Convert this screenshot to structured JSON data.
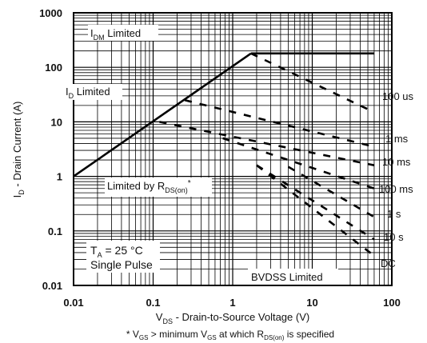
{
  "chart_data": {
    "type": "line",
    "x_scale": "log",
    "y_scale": "log",
    "xlim": [
      0.01,
      100
    ],
    "ylim": [
      0.01,
      1000
    ],
    "xticks": [
      "0.01",
      "0.1",
      "1",
      "10",
      "100"
    ],
    "yticks": [
      "1000",
      "100",
      "10",
      "1",
      "0.1",
      "0.01"
    ],
    "xlabel": {
      "main": "V",
      "sub": "DS",
      "rest": " - Drain-to-Source Voltage (V)"
    },
    "ylabel": {
      "main": "I",
      "sub": "D",
      "rest": " - Drain Current (A)"
    },
    "footnote": {
      "p1": "* V",
      "s1": "GS",
      "p2": " > minimum V",
      "s2": "GS",
      "p3": " at which R",
      "s3": "DS(on)",
      "p4": " is specified"
    },
    "grid": true,
    "series": [
      {
        "name": "R_DS(on) limit",
        "style": "solid",
        "x": [
          0.01,
          1.7
        ],
        "y": [
          1.0,
          180
        ]
      },
      {
        "name": "I_DM limit",
        "style": "solid",
        "x": [
          1.7,
          60
        ],
        "y": [
          180,
          180
        ]
      },
      {
        "name": "100 us",
        "style": "dashed",
        "x": [
          1.7,
          60
        ],
        "y": [
          180,
          15
        ]
      },
      {
        "name": "1 ms",
        "style": "dashed",
        "x": [
          0.25,
          60
        ],
        "y": [
          25,
          3.5
        ]
      },
      {
        "name": "10 ms",
        "style": "dashed",
        "x": [
          0.12,
          60
        ],
        "y": [
          10,
          1.6
        ]
      },
      {
        "name": "100 ms",
        "style": "dashed",
        "x": [
          0.75,
          60
        ],
        "y": [
          5,
          0.6
        ]
      },
      {
        "name": "1 s",
        "style": "dashed",
        "x": [
          5,
          60
        ],
        "y": [
          1.5,
          0.18
        ]
      },
      {
        "name": "10 s",
        "style": "dashed",
        "x": [
          2,
          60
        ],
        "y": [
          1.6,
          0.07
        ]
      },
      {
        "name": "DC",
        "style": "dashed",
        "x": [
          2,
          60
        ],
        "y": [
          1.6,
          0.035
        ]
      }
    ],
    "curve_labels": {
      "us100": "100 us",
      "ms1": "1 ms",
      "ms10": "10 ms",
      "ms100": "100 ms",
      "s1": "1 s",
      "s10": "10 s",
      "dc": "DC"
    },
    "annotations": {
      "idm": {
        "main": "I",
        "sub": "DM",
        "rest": " Limited"
      },
      "id": {
        "main": "I",
        "sub": "D",
        "rest": " Limited"
      },
      "rds": {
        "main": "Limited by R",
        "sub": "DS(on)",
        "sup": "*"
      },
      "ta": {
        "main": "T",
        "sub": "A",
        "rest": " = 25 °C"
      },
      "pulse": "Single Pulse",
      "bvdss": "BVDSS Limited"
    }
  }
}
